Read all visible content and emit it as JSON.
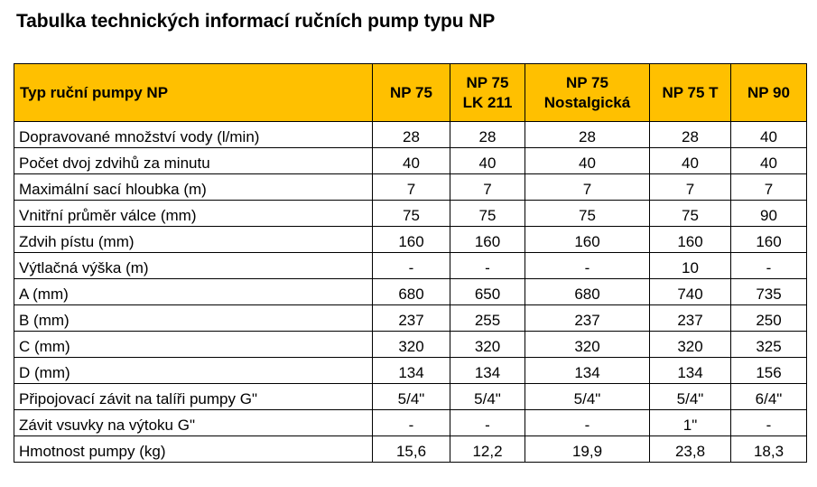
{
  "title": "Tabulka technických informací ručních pump typu NP",
  "table": {
    "header": {
      "label": "Typ ruční pumpy NP",
      "models": [
        {
          "line1": "NP 75",
          "line2": ""
        },
        {
          "line1": "NP 75",
          "line2": "LK 211"
        },
        {
          "line1": "NP 75",
          "line2": "Nostalgická"
        },
        {
          "line1": "NP 75 T",
          "line2": ""
        },
        {
          "line1": "NP 90",
          "line2": ""
        }
      ]
    },
    "rows": [
      {
        "label": "Dopravované množství vody (l/min)",
        "values": [
          "28",
          "28",
          "28",
          "28",
          "40"
        ]
      },
      {
        "label": "Počet dvoj zdvihů za minutu",
        "values": [
          "40",
          "40",
          "40",
          "40",
          "40"
        ]
      },
      {
        "label": "Maximální sací hloubka (m)",
        "values": [
          "7",
          "7",
          "7",
          "7",
          "7"
        ]
      },
      {
        "label": "Vnitřní průměr válce (mm)",
        "values": [
          "75",
          "75",
          "75",
          "75",
          "90"
        ]
      },
      {
        "label": "Zdvih pístu (mm)",
        "values": [
          "160",
          "160",
          "160",
          "160",
          "160"
        ]
      },
      {
        "label": "Výtlačná výška (m)",
        "values": [
          "-",
          "-",
          "-",
          "10",
          "-"
        ]
      },
      {
        "label": "A (mm)",
        "values": [
          "680",
          "650",
          "680",
          "740",
          "735"
        ]
      },
      {
        "label": "B (mm)",
        "values": [
          "237",
          "255",
          "237",
          "237",
          "250"
        ]
      },
      {
        "label": "C (mm)",
        "values": [
          "320",
          "320",
          "320",
          "320",
          "325"
        ]
      },
      {
        "label": "D (mm)",
        "values": [
          "134",
          "134",
          "134",
          "134",
          "156"
        ]
      },
      {
        "label": "Připojovací závit na talíři pumpy G\"",
        "values": [
          "5/4\"",
          "5/4\"",
          "5/4\"",
          "5/4\"",
          "6/4\""
        ]
      },
      {
        "label": "Závit vsuvky na výtoku G\"",
        "values": [
          "-",
          "-",
          "-",
          "1\"",
          "-"
        ]
      },
      {
        "label": "Hmotnost pumpy (kg)",
        "values": [
          "15,6",
          "12,2",
          "19,9",
          "23,8",
          "18,3"
        ]
      }
    ]
  }
}
